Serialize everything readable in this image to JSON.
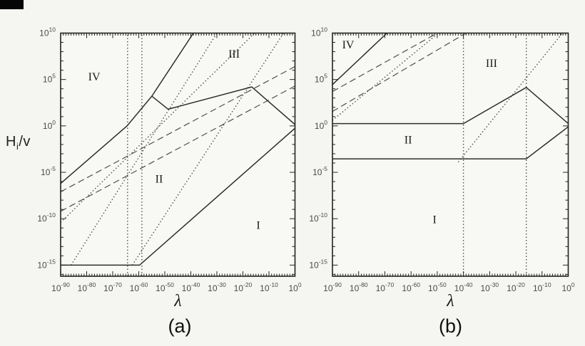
{
  "figure": {
    "y_axis_title": {
      "main": "H",
      "sub": "i",
      "rest": "/v"
    },
    "colors": {
      "background": "#f5f5f2",
      "plot_background": "#f8f8f5",
      "solid_line": "#2e2e2e",
      "dashed_line": "#4f4f4f",
      "dotted_line": "#4f4f4f",
      "axis": "#222222",
      "tick_label": "#4a4a4a",
      "region_label": "#1a1a1a"
    }
  },
  "chart_data": {
    "type": "line",
    "title": "",
    "xlabel": "λ",
    "ylabel": "Hi/v",
    "axes_scale": "log-log",
    "xlim": [
      -90,
      0
    ],
    "ylim": [
      -16.2,
      10
    ],
    "grid": false,
    "panels": [
      {
        "caption": "(a)",
        "x_title": "λ",
        "tick_mantissa": "10",
        "x_tick_exponents": [
          -90,
          -80,
          -70,
          -60,
          -50,
          -40,
          -30,
          -20,
          -10,
          0
        ],
        "y_tick_exponents": [
          10,
          5,
          0,
          -5,
          -10,
          -15
        ],
        "regions": [
          {
            "label": "IV",
            "x": -77.1,
            "y": 4.9
          },
          {
            "label": "III",
            "x": -23.4,
            "y": 7.35
          },
          {
            "label": "II",
            "x": -52.2,
            "y": -6.1
          },
          {
            "label": "I",
            "x": -14.1,
            "y": -11.1
          }
        ],
        "lines": [
          {
            "name": "region-IV-II-boundary",
            "style": "solid",
            "points": [
              [
                -90,
                -6.2
              ],
              [
                -64.5,
                0
              ],
              [
                -55,
                3.2
              ]
            ]
          },
          {
            "name": "region-IV-III-boundary",
            "style": "solid",
            "points": [
              [
                -55,
                3.2
              ],
              [
                -39,
                10
              ]
            ]
          },
          {
            "name": "region-III-II-boundary",
            "style": "solid",
            "points": [
              [
                -55,
                3.2
              ],
              [
                -48.7,
                1.8
              ],
              [
                -16.6,
                4.2
              ],
              [
                0,
                0.15
              ]
            ]
          },
          {
            "name": "region-II-I-boundary",
            "style": "solid",
            "points": [
              [
                -90,
                -15
              ],
              [
                -59.7,
                -15
              ],
              [
                0,
                -0.25
              ]
            ]
          },
          {
            "name": "dashed-reference-upper",
            "style": "dashed",
            "points": [
              [
                -90,
                -7.1
              ],
              [
                0,
                6.4
              ]
            ]
          },
          {
            "name": "dashed-reference-lower",
            "style": "dashed",
            "points": [
              [
                -90,
                -9.2
              ],
              [
                0,
                4.3
              ]
            ]
          },
          {
            "name": "vertical-dotted-1",
            "style": "dotted",
            "points": [
              [
                -64.3,
                -16.2
              ],
              [
                -64.3,
                10
              ]
            ]
          },
          {
            "name": "vertical-dotted-2",
            "style": "dotted",
            "points": [
              [
                -58.8,
                -16.2
              ],
              [
                -58.8,
                10
              ]
            ]
          },
          {
            "name": "dotted-diagonal-1",
            "style": "dotted",
            "points": [
              [
                -86,
                -15
              ],
              [
                -30,
                10
              ]
            ]
          },
          {
            "name": "dotted-diagonal-2",
            "style": "dotted",
            "points": [
              [
                -90,
                -10.4
              ],
              [
                -15.5,
                10
              ]
            ]
          },
          {
            "name": "dotted-diagonal-3",
            "style": "dotted",
            "points": [
              [
                -62.5,
                -15
              ],
              [
                -4.4,
                10
              ]
            ]
          }
        ]
      },
      {
        "caption": "(b)",
        "x_title": "λ",
        "tick_mantissa": "10",
        "x_tick_exponents": [
          -90,
          -80,
          -70,
          -60,
          -50,
          -40,
          -30,
          -20,
          -10,
          0
        ],
        "y_tick_exponents": [
          10,
          5,
          0,
          -5,
          -10,
          -15
        ],
        "regions": [
          {
            "label": "IV",
            "x": -84.0,
            "y": 8.35
          },
          {
            "label": "III",
            "x": -29.3,
            "y": 6.35
          },
          {
            "label": "II",
            "x": -61.1,
            "y": -1.9
          },
          {
            "label": "I",
            "x": -51.0,
            "y": -10.5
          }
        ],
        "lines": [
          {
            "name": "region-IV-boundary",
            "style": "solid",
            "points": [
              [
                -90,
                4.45
              ],
              [
                -69.2,
                10
              ]
            ]
          },
          {
            "name": "region-III-II-boundary",
            "style": "solid",
            "points": [
              [
                -90,
                0.25
              ],
              [
                -40,
                0.25
              ],
              [
                -16,
                4.15
              ],
              [
                0,
                0.25
              ]
            ]
          },
          {
            "name": "region-II-I-boundary",
            "style": "solid",
            "points": [
              [
                -90,
                -3.55
              ],
              [
                -16,
                -3.55
              ],
              [
                0,
                -0.1
              ]
            ]
          },
          {
            "name": "dashed-reference-upper",
            "style": "dashed",
            "points": [
              [
                -90,
                3.7
              ],
              [
                -50,
                10
              ]
            ]
          },
          {
            "name": "dashed-reference-lower",
            "style": "dashed",
            "points": [
              [
                -90,
                1.55
              ],
              [
                -39,
                10
              ]
            ]
          },
          {
            "name": "vertical-dotted-1",
            "style": "dotted",
            "points": [
              [
                -40,
                -16.2
              ],
              [
                -40,
                10
              ]
            ]
          },
          {
            "name": "vertical-dotted-2",
            "style": "dotted",
            "points": [
              [
                -16,
                -16.2
              ],
              [
                -16,
                10
              ]
            ]
          },
          {
            "name": "dotted-diagonal-1",
            "style": "dotted",
            "points": [
              [
                -90,
                0.6
              ],
              [
                -49.5,
                10
              ]
            ]
          },
          {
            "name": "dotted-diagonal-2",
            "style": "dotted",
            "points": [
              [
                -42,
                -3.9
              ],
              [
                -2.2,
                10
              ]
            ]
          }
        ]
      }
    ]
  }
}
